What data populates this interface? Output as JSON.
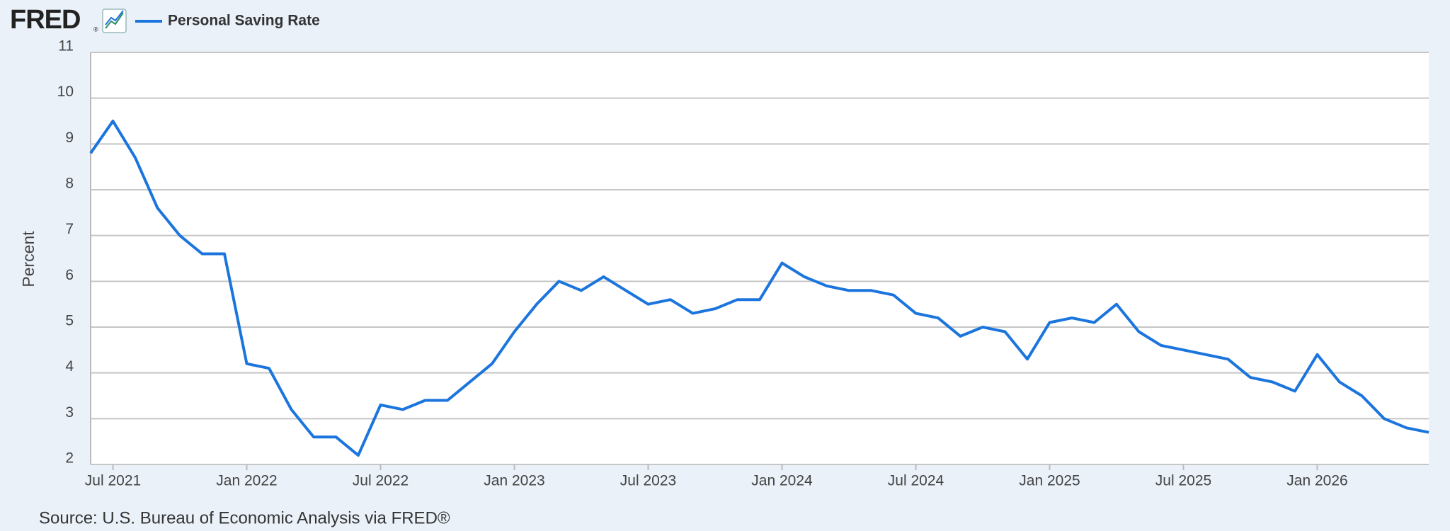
{
  "logo": "FRED",
  "logo_registered": "®",
  "source": "Source: U.S. Bureau of Economic Analysis via FRED®",
  "chart_data": {
    "type": "line",
    "title": "Personal Saving Rate",
    "y_label": "Percent",
    "x": [
      "2021-06",
      "2021-07",
      "2021-08",
      "2021-09",
      "2021-10",
      "2021-11",
      "2021-12",
      "2022-01",
      "2022-02",
      "2022-03",
      "2022-04",
      "2022-05",
      "2022-06",
      "2022-07",
      "2022-08",
      "2022-09",
      "2022-10",
      "2022-11",
      "2022-12",
      "2023-01",
      "2023-02",
      "2023-03",
      "2023-04",
      "2023-05",
      "2023-06",
      "2023-07",
      "2023-08",
      "2023-09",
      "2023-10",
      "2023-11",
      "2023-12",
      "2024-01",
      "2024-02",
      "2024-03",
      "2024-04",
      "2024-05",
      "2024-06",
      "2024-07",
      "2024-08",
      "2024-09",
      "2024-10",
      "2024-11",
      "2024-12",
      "2025-01",
      "2025-02",
      "2025-03",
      "2025-04",
      "2025-05",
      "2025-06",
      "2025-07",
      "2025-08",
      "2025-09",
      "2025-10",
      "2025-11",
      "2025-12",
      "2026-01",
      "2026-02",
      "2026-03",
      "2026-04",
      "2026-05",
      "2026-06"
    ],
    "series": [
      {
        "name": "Personal Saving Rate",
        "color": "#1b75dd",
        "values": [
          8.8,
          9.5,
          8.7,
          7.6,
          7.0,
          6.6,
          6.6,
          4.2,
          4.1,
          3.2,
          2.6,
          2.6,
          2.2,
          3.3,
          3.2,
          3.4,
          3.4,
          3.8,
          4.2,
          4.9,
          5.5,
          6.0,
          5.8,
          6.1,
          5.8,
          5.5,
          5.6,
          5.3,
          5.4,
          5.6,
          5.6,
          6.4,
          6.1,
          5.9,
          5.8,
          5.8,
          5.7,
          5.3,
          5.2,
          4.8,
          5.0,
          4.9,
          4.3,
          5.1,
          5.2,
          5.1,
          5.5,
          4.9,
          4.6,
          4.5,
          4.4,
          4.3,
          3.9,
          3.8,
          3.6,
          4.4,
          3.8,
          3.5,
          3.0,
          2.8,
          2.7
        ]
      }
    ],
    "xlim": [
      "2021-06",
      "2026-06"
    ],
    "xticks": [
      {
        "value": "2021-07",
        "label": "Jul 2021"
      },
      {
        "value": "2022-01",
        "label": "Jan 2022"
      },
      {
        "value": "2022-07",
        "label": "Jul 2022"
      },
      {
        "value": "2023-01",
        "label": "Jan 2023"
      },
      {
        "value": "2023-07",
        "label": "Jul 2023"
      },
      {
        "value": "2024-01",
        "label": "Jan 2024"
      },
      {
        "value": "2024-07",
        "label": "Jul 2024"
      },
      {
        "value": "2025-01",
        "label": "Jan 2025"
      },
      {
        "value": "2025-07",
        "label": "Jul 2025"
      },
      {
        "value": "2026-01",
        "label": "Jan 2026"
      }
    ],
    "ylim": [
      2,
      11
    ],
    "yticks": [
      2,
      3,
      4,
      5,
      6,
      7,
      8,
      9,
      10,
      11
    ],
    "grid": true
  }
}
